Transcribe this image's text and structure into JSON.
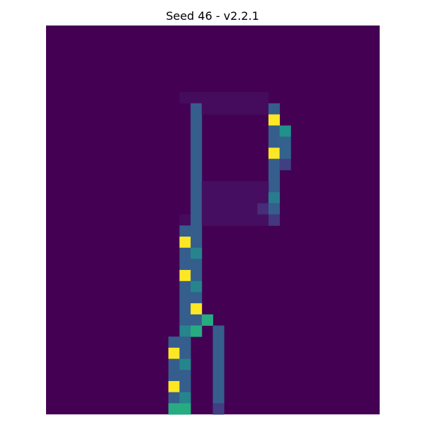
{
  "chart_data": {
    "type": "heatmap",
    "title": "Seed 46 - v2.2.1",
    "colormap": "viridis",
    "value_range": [
      0,
      1
    ],
    "grid": false,
    "axes_visible": false,
    "background_value": 0.0,
    "rows": 35,
    "cols": 30,
    "cells": [
      {
        "r": 6,
        "c": 12,
        "v": 0.04
      },
      {
        "r": 6,
        "c": 13,
        "v": 0.04
      },
      {
        "r": 6,
        "c": 14,
        "v": 0.04
      },
      {
        "r": 6,
        "c": 15,
        "v": 0.04
      },
      {
        "r": 6,
        "c": 16,
        "v": 0.04
      },
      {
        "r": 6,
        "c": 17,
        "v": 0.04
      },
      {
        "r": 6,
        "c": 18,
        "v": 0.04
      },
      {
        "r": 6,
        "c": 19,
        "v": 0.04
      },
      {
        "r": 7,
        "c": 13,
        "v": 0.3
      },
      {
        "r": 7,
        "c": 14,
        "v": 0.04
      },
      {
        "r": 7,
        "c": 15,
        "v": 0.04
      },
      {
        "r": 7,
        "c": 16,
        "v": 0.04
      },
      {
        "r": 7,
        "c": 17,
        "v": 0.04
      },
      {
        "r": 7,
        "c": 18,
        "v": 0.04
      },
      {
        "r": 7,
        "c": 19,
        "v": 0.04
      },
      {
        "r": 7,
        "c": 20,
        "v": 0.3
      },
      {
        "r": 8,
        "c": 13,
        "v": 0.3
      },
      {
        "r": 8,
        "c": 20,
        "v": 1.0
      },
      {
        "r": 9,
        "c": 13,
        "v": 0.3
      },
      {
        "r": 9,
        "c": 20,
        "v": 0.3
      },
      {
        "r": 9,
        "c": 21,
        "v": 0.5
      },
      {
        "r": 10,
        "c": 13,
        "v": 0.3
      },
      {
        "r": 10,
        "c": 20,
        "v": 0.3
      },
      {
        "r": 10,
        "c": 21,
        "v": 0.32
      },
      {
        "r": 11,
        "c": 13,
        "v": 0.3
      },
      {
        "r": 11,
        "c": 20,
        "v": 1.0
      },
      {
        "r": 11,
        "c": 21,
        "v": 0.32
      },
      {
        "r": 12,
        "c": 13,
        "v": 0.3
      },
      {
        "r": 12,
        "c": 20,
        "v": 0.3
      },
      {
        "r": 12,
        "c": 21,
        "v": 0.2
      },
      {
        "r": 13,
        "c": 13,
        "v": 0.3
      },
      {
        "r": 13,
        "c": 20,
        "v": 0.3
      },
      {
        "r": 14,
        "c": 13,
        "v": 0.3
      },
      {
        "r": 14,
        "c": 20,
        "v": 0.3
      },
      {
        "r": 14,
        "c": 14,
        "v": 0.05
      },
      {
        "r": 14,
        "c": 15,
        "v": 0.05
      },
      {
        "r": 14,
        "c": 16,
        "v": 0.05
      },
      {
        "r": 14,
        "c": 17,
        "v": 0.05
      },
      {
        "r": 14,
        "c": 18,
        "v": 0.05
      },
      {
        "r": 14,
        "c": 19,
        "v": 0.05
      },
      {
        "r": 15,
        "c": 13,
        "v": 0.3
      },
      {
        "r": 15,
        "c": 14,
        "v": 0.05
      },
      {
        "r": 15,
        "c": 15,
        "v": 0.05
      },
      {
        "r": 15,
        "c": 16,
        "v": 0.05
      },
      {
        "r": 15,
        "c": 17,
        "v": 0.05
      },
      {
        "r": 15,
        "c": 18,
        "v": 0.05
      },
      {
        "r": 15,
        "c": 19,
        "v": 0.05
      },
      {
        "r": 15,
        "c": 20,
        "v": 0.42
      },
      {
        "r": 16,
        "c": 13,
        "v": 0.3
      },
      {
        "r": 16,
        "c": 14,
        "v": 0.05
      },
      {
        "r": 16,
        "c": 15,
        "v": 0.05
      },
      {
        "r": 16,
        "c": 16,
        "v": 0.05
      },
      {
        "r": 16,
        "c": 17,
        "v": 0.05
      },
      {
        "r": 16,
        "c": 18,
        "v": 0.05
      },
      {
        "r": 16,
        "c": 19,
        "v": 0.15
      },
      {
        "r": 16,
        "c": 20,
        "v": 0.3
      },
      {
        "r": 17,
        "c": 12,
        "v": 0.04
      },
      {
        "r": 17,
        "c": 13,
        "v": 0.3
      },
      {
        "r": 17,
        "c": 14,
        "v": 0.05
      },
      {
        "r": 17,
        "c": 15,
        "v": 0.05
      },
      {
        "r": 17,
        "c": 16,
        "v": 0.05
      },
      {
        "r": 17,
        "c": 17,
        "v": 0.05
      },
      {
        "r": 17,
        "c": 18,
        "v": 0.05
      },
      {
        "r": 17,
        "c": 19,
        "v": 0.05
      },
      {
        "r": 17,
        "c": 20,
        "v": 0.18
      },
      {
        "r": 18,
        "c": 12,
        "v": 0.3
      },
      {
        "r": 18,
        "c": 13,
        "v": 0.3
      },
      {
        "r": 19,
        "c": 12,
        "v": 1.0
      },
      {
        "r": 19,
        "c": 13,
        "v": 0.3
      },
      {
        "r": 20,
        "c": 12,
        "v": 0.3
      },
      {
        "r": 20,
        "c": 13,
        "v": 0.45
      },
      {
        "r": 21,
        "c": 12,
        "v": 0.3
      },
      {
        "r": 21,
        "c": 13,
        "v": 0.3
      },
      {
        "r": 22,
        "c": 12,
        "v": 1.0
      },
      {
        "r": 22,
        "c": 13,
        "v": 0.3
      },
      {
        "r": 23,
        "c": 12,
        "v": 0.3
      },
      {
        "r": 23,
        "c": 13,
        "v": 0.45
      },
      {
        "r": 24,
        "c": 12,
        "v": 0.3
      },
      {
        "r": 24,
        "c": 13,
        "v": 0.3
      },
      {
        "r": 25,
        "c": 12,
        "v": 0.3
      },
      {
        "r": 25,
        "c": 13,
        "v": 1.0
      },
      {
        "r": 26,
        "c": 12,
        "v": 0.3
      },
      {
        "r": 26,
        "c": 13,
        "v": 0.3
      },
      {
        "r": 26,
        "c": 14,
        "v": 0.62
      },
      {
        "r": 27,
        "c": 12,
        "v": 0.45
      },
      {
        "r": 27,
        "c": 13,
        "v": 0.62
      },
      {
        "r": 27,
        "c": 15,
        "v": 0.3
      },
      {
        "r": 28,
        "c": 11,
        "v": 0.3
      },
      {
        "r": 28,
        "c": 12,
        "v": 0.3
      },
      {
        "r": 28,
        "c": 15,
        "v": 0.3
      },
      {
        "r": 29,
        "c": 11,
        "v": 1.0
      },
      {
        "r": 29,
        "c": 12,
        "v": 0.3
      },
      {
        "r": 29,
        "c": 15,
        "v": 0.3
      },
      {
        "r": 30,
        "c": 11,
        "v": 0.3
      },
      {
        "r": 30,
        "c": 12,
        "v": 0.45
      },
      {
        "r": 30,
        "c": 15,
        "v": 0.3
      },
      {
        "r": 31,
        "c": 11,
        "v": 0.3
      },
      {
        "r": 31,
        "c": 12,
        "v": 0.3
      },
      {
        "r": 31,
        "c": 15,
        "v": 0.3
      },
      {
        "r": 32,
        "c": 11,
        "v": 1.0
      },
      {
        "r": 32,
        "c": 12,
        "v": 0.3
      },
      {
        "r": 32,
        "c": 15,
        "v": 0.3
      },
      {
        "r": 33,
        "c": 11,
        "v": 0.3
      },
      {
        "r": 33,
        "c": 12,
        "v": 0.45
      },
      {
        "r": 33,
        "c": 15,
        "v": 0.3
      },
      {
        "r": 34,
        "c": 11,
        "v": 0.62
      },
      {
        "r": 34,
        "c": 12,
        "v": 0.62
      },
      {
        "r": 34,
        "c": 15,
        "v": 0.2
      }
    ]
  }
}
